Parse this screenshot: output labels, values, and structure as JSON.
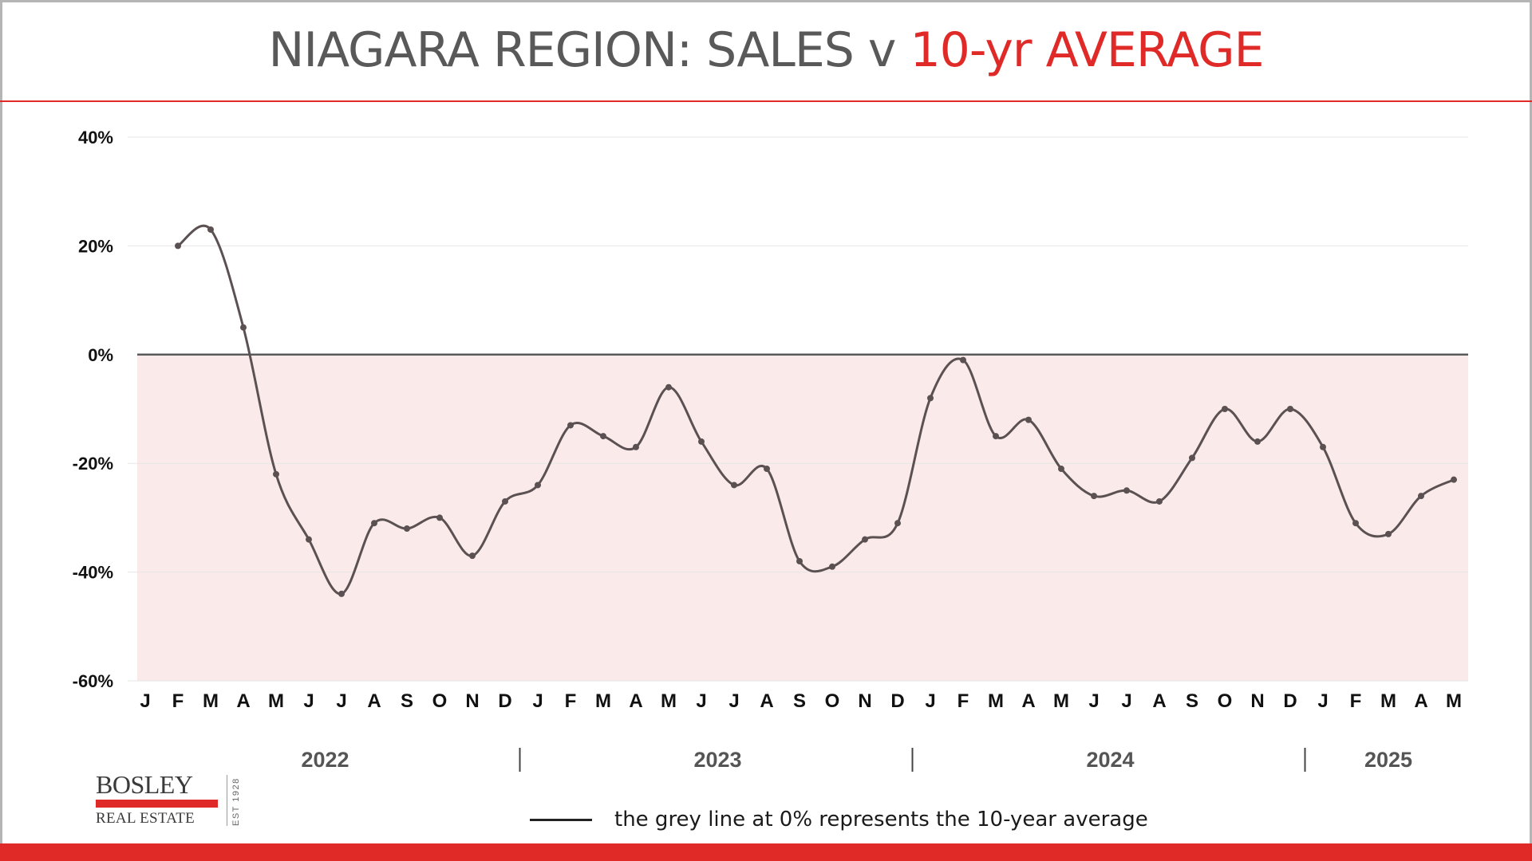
{
  "header": {
    "title_main": "NIAGARA REGION: SALES v ",
    "title_accent": "10-yr AVERAGE"
  },
  "logo": {
    "name": "BOSLEY",
    "sub": "REAL ESTATE",
    "est": "EST 1928"
  },
  "legend": {
    "text": "the grey line at 0% represents the 10-year average"
  },
  "colors": {
    "accent": "#e02a27",
    "line": "#5b5152",
    "below_fill": "#faeaea",
    "zero_line": "#5a5a5a",
    "grid": "#e6e6e6"
  },
  "chart_data": {
    "type": "line",
    "title": "NIAGARA REGION: SALES v 10-yr AVERAGE",
    "xlabel": "",
    "ylabel": "",
    "ylim": [
      -60,
      40
    ],
    "yticks": [
      40,
      20,
      0,
      -20,
      -40,
      -60
    ],
    "ytick_labels": [
      "40%",
      "20%",
      "0%",
      "-20%",
      "-40%",
      "-60%"
    ],
    "grid": true,
    "reference_line": 0,
    "categories": [
      "J",
      "F",
      "M",
      "A",
      "M",
      "J",
      "J",
      "A",
      "S",
      "O",
      "N",
      "D",
      "J",
      "F",
      "M",
      "A",
      "M",
      "J",
      "J",
      "A",
      "S",
      "O",
      "N",
      "D",
      "J",
      "F",
      "M",
      "A",
      "M",
      "J",
      "J",
      "A",
      "S",
      "O",
      "N",
      "D",
      "J",
      "F",
      "M",
      "A",
      "M"
    ],
    "years": [
      {
        "label": "2022",
        "start": 0,
        "end": 11
      },
      {
        "label": "2023",
        "start": 12,
        "end": 23
      },
      {
        "label": "2024",
        "start": 24,
        "end": 35
      },
      {
        "label": "2025",
        "start": 36,
        "end": 40
      }
    ],
    "series": [
      {
        "values": [
          null,
          20,
          23,
          5,
          -22,
          -34,
          -44,
          -31,
          -32,
          -30,
          -37,
          -27,
          -24,
          -13,
          -15,
          -17,
          -6,
          -16,
          -24,
          -21,
          -38,
          -39,
          -34,
          -31,
          -8,
          -1,
          -15,
          -12,
          -21,
          -26,
          -25,
          -27,
          -19,
          -10,
          -16,
          -10,
          -17,
          -31,
          -33,
          -26,
          -23
        ]
      }
    ]
  }
}
